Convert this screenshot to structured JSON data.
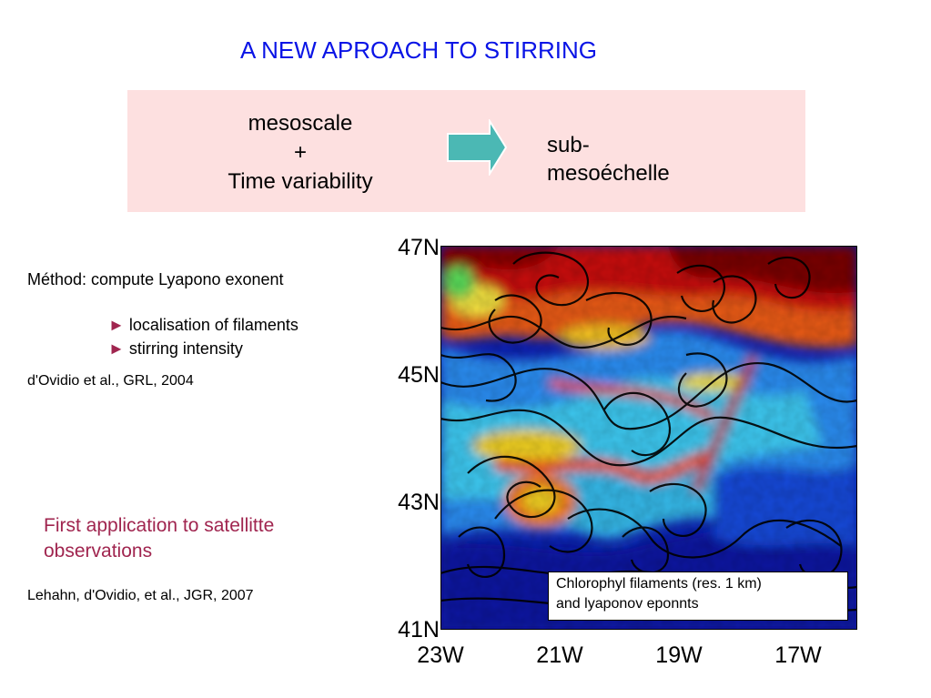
{
  "slide": {
    "title": "A NEW APROACH TO STIRRING",
    "box": {
      "left_line1": "mesoscale",
      "left_line2": "+",
      "left_line3": "Time variability",
      "right_line1": "sub-",
      "right_line2": "mesoéchelle",
      "arrow_color": "#4bb8b4",
      "background_color": "#fde0e0"
    },
    "method": "Méthod: compute Lyapono exonent",
    "bullets": [
      "localisation of filaments",
      "stirring intensity"
    ],
    "bullet_glyph": "►",
    "reference1": "d'Ovidio et al., GRL, 2004",
    "highlight_line1": "First application to satellitte",
    "highlight_line2": "observations",
    "highlight_color": "#a0254f",
    "reference2": "Lehahn, d'Ovidio, et al., JGR, 2007"
  },
  "map": {
    "y_ticks": [
      "47N",
      "45N",
      "43N",
      "41N"
    ],
    "x_ticks": [
      "23W",
      "21W",
      "19W",
      "17W"
    ],
    "caption_line1": "Chlorophyl filaments (res. 1 km)",
    "caption_line2": "and lyaponov eponnts",
    "palette": [
      "#0b1aa8",
      "#1a6cf0",
      "#3ad0f0",
      "#f0e020",
      "#f07010",
      "#c81010",
      "#8a0000"
    ]
  }
}
